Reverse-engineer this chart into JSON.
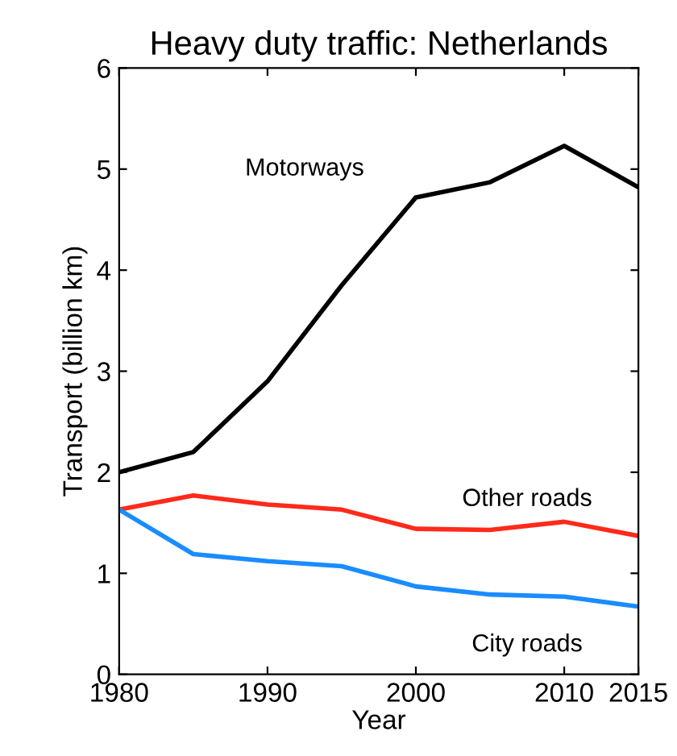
{
  "chart_data": {
    "type": "line",
    "title": "Heavy duty traffic: Netherlands",
    "xlabel": "Year",
    "ylabel": "Transport (billion km)",
    "x": [
      1980,
      1985,
      1990,
      1995,
      2000,
      2005,
      2010,
      2015
    ],
    "series": [
      {
        "name": "Motorways",
        "color": "#000000",
        "values": [
          2.0,
          2.2,
          2.9,
          3.85,
          4.72,
          4.87,
          5.23,
          4.82
        ]
      },
      {
        "name": "Other roads",
        "color": "#ff2a1a",
        "values": [
          1.63,
          1.77,
          1.68,
          1.63,
          1.44,
          1.43,
          1.51,
          1.37
        ]
      },
      {
        "name": "City roads",
        "color": "#1a8cff",
        "values": [
          1.63,
          1.19,
          1.12,
          1.07,
          0.87,
          0.79,
          0.77,
          0.67
        ]
      }
    ],
    "xlim": [
      1980,
      2015
    ],
    "xticks": [
      1980,
      1990,
      2000,
      2010,
      2015
    ],
    "ylim": [
      0,
      6
    ],
    "yticks": [
      0,
      1,
      2,
      3,
      4,
      5,
      6
    ],
    "grid": false,
    "legend": false,
    "marker": "none",
    "line_style": "solid"
  }
}
